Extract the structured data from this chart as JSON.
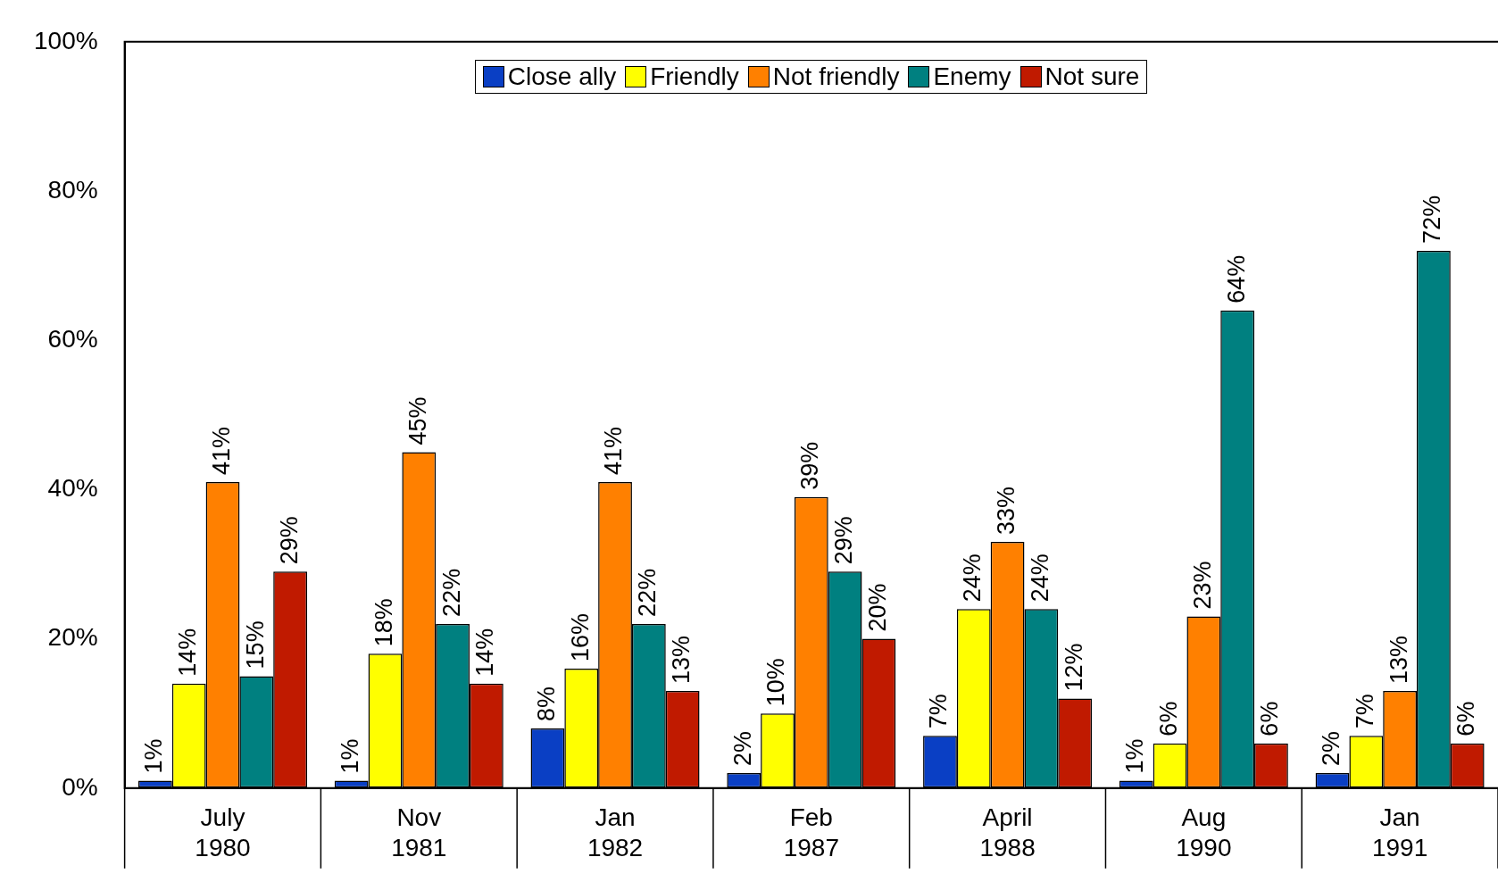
{
  "chart_data": {
    "type": "bar",
    "categories": [
      "July 1980",
      "Nov 1981",
      "Jan 1982",
      "Feb 1987",
      "April 1988",
      "Aug 1990",
      "Jan 1991"
    ],
    "series": [
      {
        "name": "Close ally",
        "color": "#0a3fc4",
        "values": [
          1,
          1,
          8,
          2,
          7,
          1,
          2
        ],
        "value_labels": [
          "1%",
          "1%",
          "8%",
          "2%",
          "7%",
          "1%",
          "2%"
        ]
      },
      {
        "name": "Friendly",
        "color": "#ffff00",
        "values": [
          14,
          18,
          16,
          10,
          24,
          6,
          7
        ],
        "value_labels": [
          "14%",
          "18%",
          "16%",
          "10%",
          "24%",
          "6%",
          "7%"
        ]
      },
      {
        "name": "Not friendly",
        "color": "#ff8000",
        "values": [
          41,
          45,
          41,
          39,
          33,
          23,
          13
        ],
        "value_labels": [
          "41%",
          "45%",
          "41%",
          "39%",
          "33%",
          "23%",
          "13%"
        ]
      },
      {
        "name": "Enemy",
        "color": "#008080",
        "values": [
          15,
          22,
          22,
          29,
          24,
          64,
          72
        ],
        "value_labels": [
          "15%",
          "22%",
          "22%",
          "29%",
          "24%",
          "64%",
          "72%"
        ]
      },
      {
        "name": "Not sure",
        "color": "#c01a00",
        "values": [
          29,
          14,
          13,
          20,
          12,
          6,
          6
        ],
        "value_labels": [
          "29%",
          "14%",
          "13%",
          "20%",
          "12%",
          "6%",
          "6%"
        ]
      }
    ],
    "ylim": [
      0,
      100
    ],
    "yticks": [
      {
        "value": 0,
        "label": "0%"
      },
      {
        "value": 20,
        "label": "20%"
      },
      {
        "value": 40,
        "label": "40%"
      },
      {
        "value": 60,
        "label": "60%"
      },
      {
        "value": 80,
        "label": "80%"
      },
      {
        "value": 100,
        "label": "100%"
      }
    ],
    "grid": false,
    "legend": "top"
  }
}
